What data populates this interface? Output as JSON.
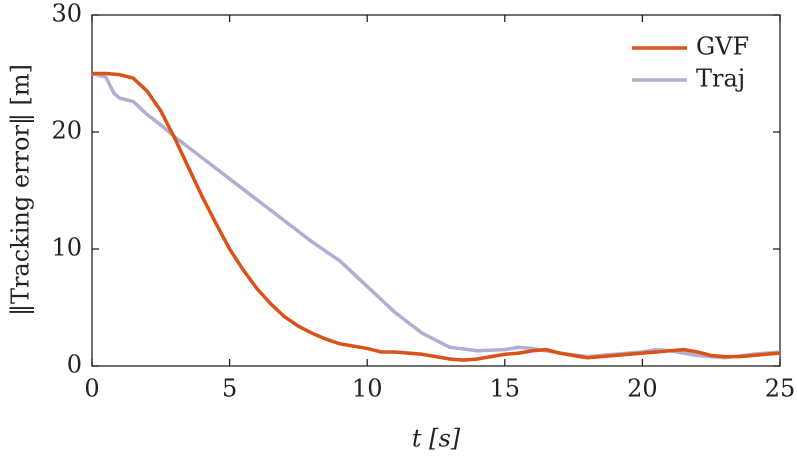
{
  "chart_data": {
    "type": "line",
    "x_label": "t [s]",
    "y_label": "‖Tracking error‖ [m]",
    "xlim": [
      0,
      25
    ],
    "xticks": [
      0,
      5,
      10,
      15,
      20,
      25
    ],
    "ylim": [
      0,
      30
    ],
    "yticks": [
      0,
      10,
      20,
      30
    ],
    "legend": "upper-right",
    "series": [
      {
        "name": "GVF",
        "color": "#d95319",
        "x": [
          0,
          0.5,
          1,
          1.5,
          2,
          2.5,
          3,
          3.5,
          4,
          4.5,
          5,
          5.5,
          6,
          6.5,
          7,
          7.5,
          8,
          8.5,
          9,
          9.5,
          10,
          10.5,
          11,
          11.5,
          12,
          12.5,
          13,
          13.5,
          14,
          14.5,
          15,
          15.5,
          16,
          16.5,
          17,
          17.5,
          18,
          18.5,
          19,
          19.5,
          20,
          20.5,
          21,
          21.5,
          22,
          22.5,
          23,
          23.5,
          24,
          24.5,
          25
        ],
        "values": [
          25,
          25,
          24.9,
          24.6,
          23.5,
          21.8,
          19.5,
          17,
          14.5,
          12.2,
          10,
          8.2,
          6.6,
          5.3,
          4.2,
          3.4,
          2.8,
          2.3,
          1.9,
          1.7,
          1.5,
          1.2,
          1.2,
          1.1,
          1.0,
          0.8,
          0.6,
          0.5,
          0.6,
          0.8,
          1.0,
          1.1,
          1.3,
          1.4,
          1.1,
          0.9,
          0.7,
          0.8,
          0.9,
          1.0,
          1.1,
          1.2,
          1.3,
          1.4,
          1.2,
          0.9,
          0.8,
          0.8,
          0.9,
          1.0,
          1.1
        ]
      },
      {
        "name": "Traj",
        "color": "#b0aed4",
        "x": [
          0,
          0.5,
          0.8,
          1,
          1.5,
          2,
          2.5,
          3,
          3.5,
          4,
          5,
          6,
          7,
          8,
          9,
          10,
          11,
          12,
          13,
          14,
          15,
          15.5,
          16,
          17,
          18,
          19,
          20,
          20.5,
          21,
          22,
          23,
          24,
          25
        ],
        "values": [
          25,
          24.7,
          23.3,
          22.9,
          22.6,
          21.5,
          20.6,
          19.6,
          18.7,
          17.8,
          16.0,
          14.2,
          12.4,
          10.6,
          9.0,
          6.8,
          4.6,
          2.8,
          1.6,
          1.3,
          1.4,
          1.6,
          1.5,
          1.1,
          0.8,
          1.0,
          1.2,
          1.4,
          1.3,
          0.9,
          0.7,
          1.0,
          1.2
        ]
      }
    ]
  }
}
